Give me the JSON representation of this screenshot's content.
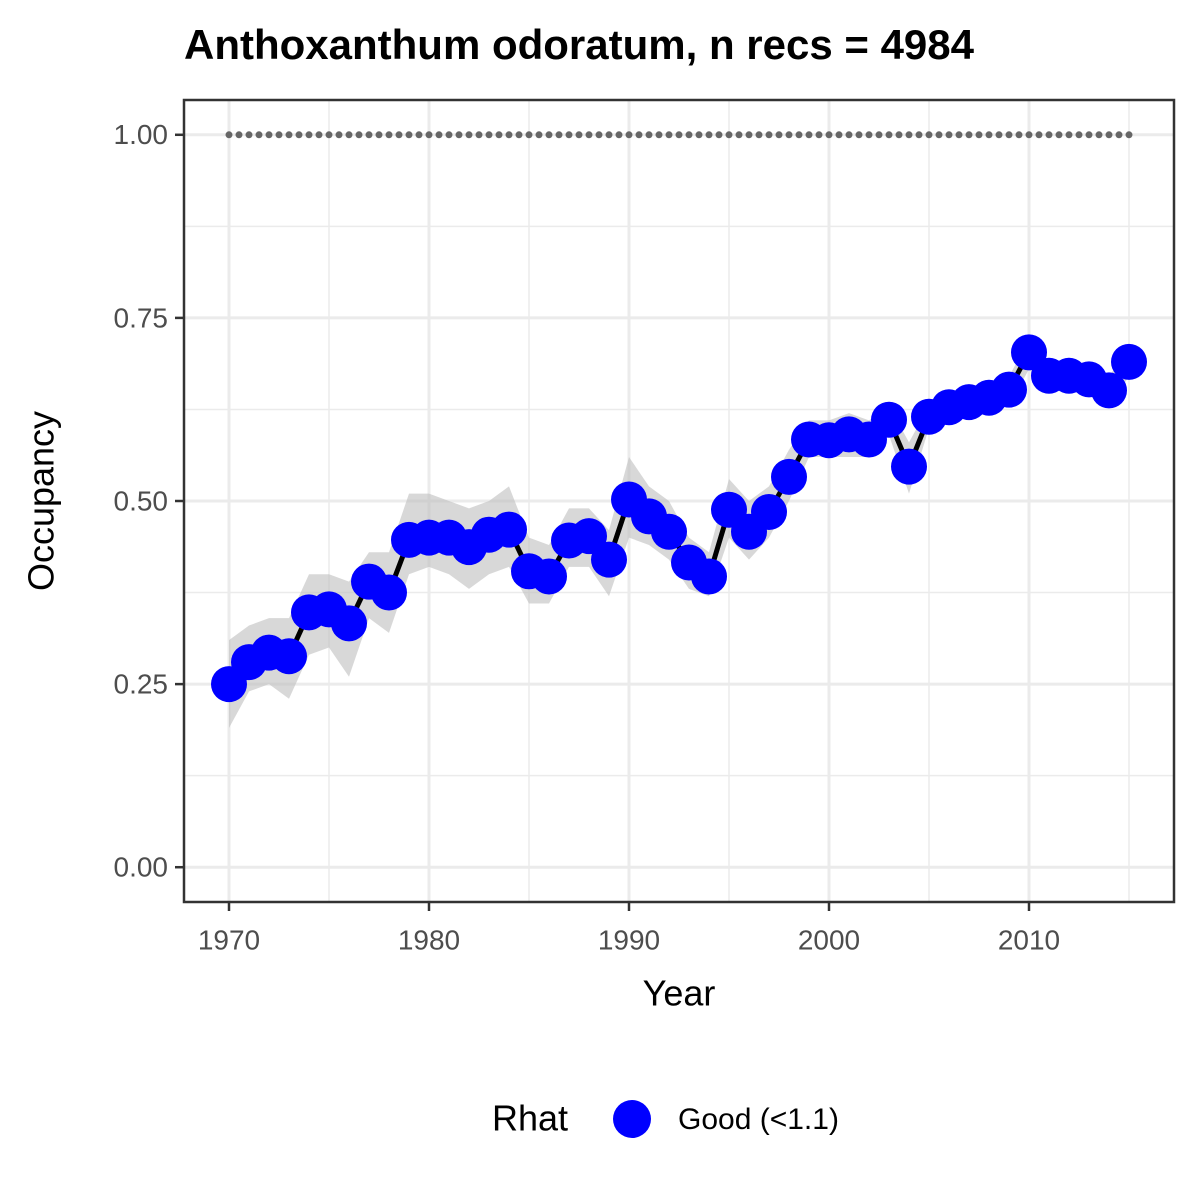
{
  "chart_data": {
    "type": "line",
    "title": "Anthoxanthum odoratum, n recs = 4984",
    "xlabel": "Year",
    "ylabel": "Occupancy",
    "x": [
      1970,
      1971,
      1972,
      1973,
      1974,
      1975,
      1976,
      1977,
      1978,
      1979,
      1980,
      1981,
      1982,
      1983,
      1984,
      1985,
      1986,
      1987,
      1988,
      1989,
      1990,
      1991,
      1992,
      1993,
      1994,
      1995,
      1996,
      1997,
      1998,
      1999,
      2000,
      2001,
      2002,
      2003,
      2004,
      2005,
      2006,
      2007,
      2008,
      2009,
      2010,
      2011,
      2012,
      2013,
      2014,
      2015
    ],
    "series": [
      {
        "name": "Good (<1.1)",
        "color": "#0000ff",
        "line_color": "#000000",
        "values": [
          0.25,
          0.28,
          0.293,
          0.288,
          0.348,
          0.352,
          0.333,
          0.39,
          0.375,
          0.447,
          0.45,
          0.45,
          0.437,
          0.454,
          0.461,
          0.404,
          0.397,
          0.446,
          0.452,
          0.42,
          0.502,
          0.479,
          0.458,
          0.416,
          0.397,
          0.488,
          0.458,
          0.485,
          0.533,
          0.584,
          0.583,
          0.591,
          0.584,
          0.611,
          0.547,
          0.615,
          0.628,
          0.635,
          0.641,
          0.652,
          0.703,
          0.671,
          0.671,
          0.666,
          0.651,
          0.69
        ],
        "lower": [
          0.19,
          0.24,
          0.25,
          0.23,
          0.29,
          0.3,
          0.26,
          0.34,
          0.32,
          0.4,
          0.41,
          0.4,
          0.38,
          0.4,
          0.41,
          0.36,
          0.36,
          0.41,
          0.41,
          0.37,
          0.45,
          0.44,
          0.42,
          0.38,
          0.37,
          0.45,
          0.42,
          0.45,
          0.5,
          0.56,
          0.56,
          0.56,
          0.56,
          0.59,
          0.51,
          0.6,
          0.61,
          0.62,
          0.62,
          0.63,
          0.68,
          0.65,
          0.65,
          0.65,
          0.63,
          0.67
        ],
        "upper": [
          0.31,
          0.33,
          0.34,
          0.34,
          0.4,
          0.4,
          0.39,
          0.43,
          0.43,
          0.51,
          0.51,
          0.5,
          0.49,
          0.5,
          0.52,
          0.45,
          0.44,
          0.49,
          0.49,
          0.46,
          0.56,
          0.52,
          0.5,
          0.45,
          0.43,
          0.53,
          0.5,
          0.52,
          0.57,
          0.61,
          0.61,
          0.62,
          0.61,
          0.63,
          0.58,
          0.63,
          0.65,
          0.65,
          0.66,
          0.67,
          0.72,
          0.69,
          0.69,
          0.68,
          0.67,
          0.71
        ],
        "ribbon_color": "#bebebe"
      }
    ],
    "reference_line": {
      "value": 1,
      "color": "#666666"
    },
    "legend_title": "Rhat",
    "legend_position": "bottom",
    "xlim": [
      1967.75,
      2017.25
    ],
    "ylim": [
      -0.0475,
      1.0475
    ],
    "xticks": [
      1970,
      1980,
      1990,
      2000,
      2010
    ],
    "xticks_minor": [
      1975,
      1985,
      1995,
      2005,
      2015
    ],
    "yticks": [
      {
        "value": 0,
        "label": "0.00"
      },
      {
        "value": 0.25,
        "label": "0.25"
      },
      {
        "value": 0.5,
        "label": "0.50"
      },
      {
        "value": 0.75,
        "label": "0.75"
      },
      {
        "value": 1,
        "label": "1.00"
      }
    ],
    "yticks_minor": [
      0.125,
      0.375,
      0.625,
      0.875
    ],
    "grid": true
  }
}
